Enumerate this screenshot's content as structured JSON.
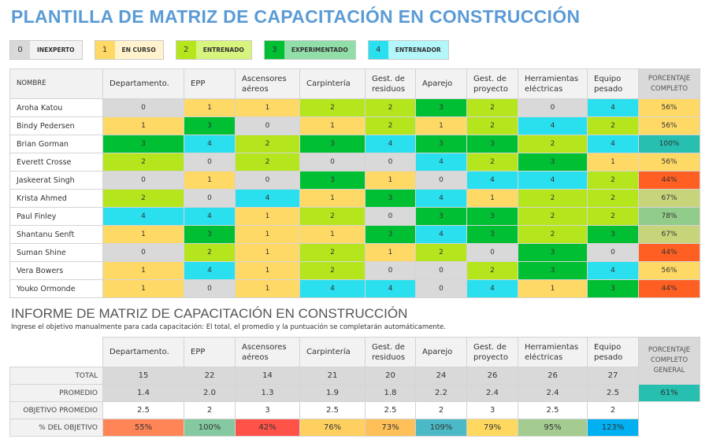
{
  "title": "PLANTILLA DE MATRIZ DE CAPACITACIÓN EN CONSTRUCCIÓN",
  "legend": [
    {
      "value": "0",
      "label": "INEXPERTO",
      "color": "#d9d9d9",
      "light": "#f2f2f2"
    },
    {
      "value": "1",
      "label": "EN CURSO",
      "color": "#ffd966",
      "light": "#fff2cc"
    },
    {
      "value": "2",
      "label": "ENTRENADO",
      "color": "#b5e61d",
      "light": "#d6f47e"
    },
    {
      "value": "3",
      "label": "EXPERIMENTADO",
      "color": "#00bf33",
      "light": "#92dea8"
    },
    {
      "value": "4",
      "label": "ENTRENADOR",
      "color": "#2ae0ef",
      "light": "#b3f7fb"
    }
  ],
  "matrix": {
    "name_header": "NOMBRE",
    "columns": [
      "Departamento.",
      "EPP",
      "Ascensores aéreos",
      "Carpintería",
      "Gest. de residuos",
      "Aparejo",
      "Gest. de proyecto",
      "Herramientas eléctricas",
      "Equipo pesado"
    ],
    "percent_header": "PORCENTAJE COMPLETO",
    "rows": [
      {
        "name": "Aroha Katou",
        "scores": [
          0,
          1,
          1,
          2,
          2,
          3,
          2,
          0,
          4
        ],
        "percent": "56%",
        "pcolor": "#ffd966"
      },
      {
        "name": "Bindy Pedersen",
        "scores": [
          1,
          3,
          0,
          1,
          2,
          1,
          2,
          4,
          2
        ],
        "percent": "56%",
        "pcolor": "#ffd966"
      },
      {
        "name": "Brian Gorman",
        "scores": [
          3,
          4,
          2,
          3,
          4,
          3,
          3,
          2,
          4
        ],
        "percent": "100%",
        "pcolor": "#26bfb0"
      },
      {
        "name": "Everett Crosse",
        "scores": [
          2,
          0,
          2,
          0,
          0,
          4,
          2,
          3,
          1
        ],
        "percent": "56%",
        "pcolor": "#ffd966"
      },
      {
        "name": "Jaskeerat Singh",
        "scores": [
          0,
          1,
          0,
          3,
          1,
          0,
          4,
          4,
          2
        ],
        "percent": "44%",
        "pcolor": "#ff5f22"
      },
      {
        "name": "Krista Ahmed",
        "scores": [
          2,
          0,
          4,
          1,
          3,
          4,
          1,
          2,
          2
        ],
        "percent": "67%",
        "pcolor": "#c8d47a"
      },
      {
        "name": "Paul Finley",
        "scores": [
          4,
          4,
          1,
          2,
          0,
          3,
          3,
          2,
          2
        ],
        "percent": "78%",
        "pcolor": "#92cc8a"
      },
      {
        "name": "Shantanu Senft",
        "scores": [
          1,
          3,
          1,
          1,
          3,
          4,
          3,
          2,
          3
        ],
        "percent": "67%",
        "pcolor": "#c8d47a"
      },
      {
        "name": "Suman Shine",
        "scores": [
          0,
          2,
          1,
          2,
          1,
          2,
          0,
          3,
          0
        ],
        "percent": "44%",
        "pcolor": "#ff5f22"
      },
      {
        "name": "Vera Bowers",
        "scores": [
          1,
          4,
          1,
          2,
          0,
          0,
          2,
          3,
          4
        ],
        "percent": "56%",
        "pcolor": "#ffd966"
      },
      {
        "name": "Youko Ormonde",
        "scores": [
          1,
          0,
          1,
          4,
          4,
          0,
          4,
          1,
          3
        ],
        "percent": "44%",
        "pcolor": "#ff5f22"
      }
    ]
  },
  "report": {
    "title": "INFORME DE MATRIZ DE CAPACITACIÓN EN CONSTRUCCIÓN",
    "subtitle": "Ingrese el objetivo manualmente para cada capacitación: El total, el promedio y la puntuación se completarán automáticamente.",
    "percent_header": "PORCENTAJE COMPLETO GENERAL",
    "overall": "61%",
    "overall_color": "#26bfb0",
    "total_label": "TOTAL",
    "totals": [
      "15",
      "22",
      "14",
      "21",
      "20",
      "24",
      "26",
      "26",
      "27"
    ],
    "avg_label": "PROMEDIO",
    "averages": [
      "1.4",
      "2.0",
      "1.3",
      "1.9",
      "1.8",
      "2.2",
      "2.4",
      "2.4",
      "2.5"
    ],
    "target_label": "OBJETIVO PROMEDIO",
    "targets": [
      "2.5",
      "2",
      "3",
      "2.5",
      "2.5",
      "2",
      "3",
      "2.5",
      "2"
    ],
    "pct_label": "% DEL OBJETIVO",
    "pcts": [
      "55%",
      "100%",
      "42%",
      "76%",
      "73%",
      "109%",
      "79%",
      "95%",
      "123%"
    ],
    "pct_colors": [
      "#ff8456",
      "#84c9a0",
      "#ff5248",
      "#ffd060",
      "#ffc05a",
      "#4bbac6",
      "#ffd860",
      "#a4cc90",
      "#00b0f0"
    ]
  }
}
